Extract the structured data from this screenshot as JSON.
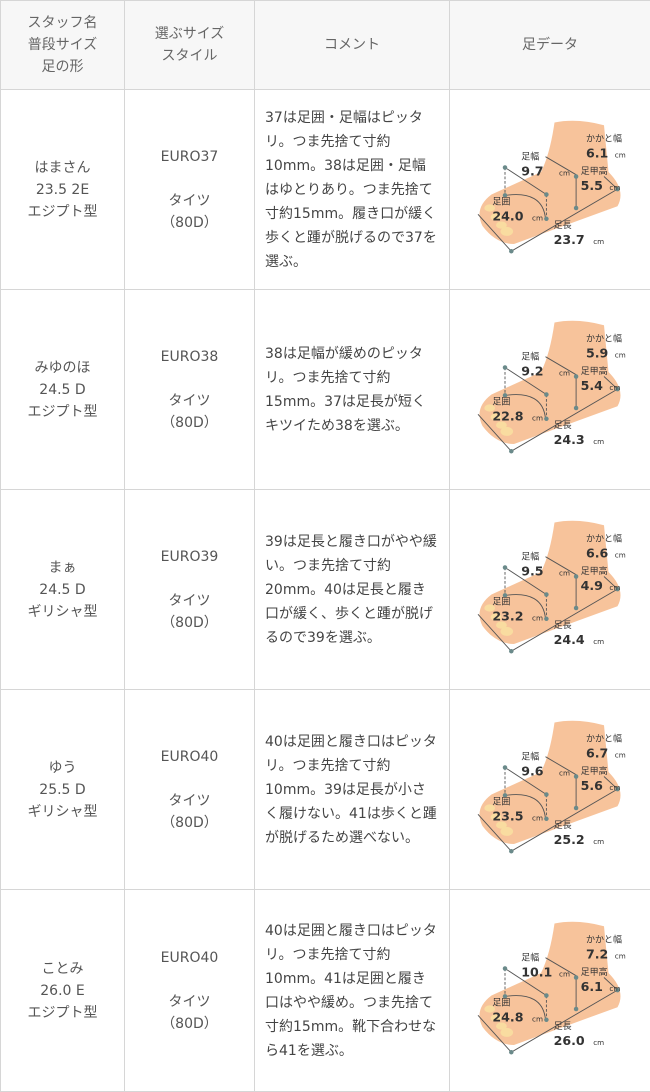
{
  "header": {
    "col1": [
      "スタッフ名",
      "普段サイズ",
      "足の形"
    ],
    "col2": [
      "選ぶサイズ",
      "スタイル"
    ],
    "col3": "コメント",
    "col4": "足データ"
  },
  "labels": {
    "width": "足幅",
    "heel": "かかと幅",
    "instep": "足甲高",
    "girth": "足囲",
    "length": "足長",
    "unit": "cm"
  },
  "rows": [
    {
      "name": "はまさん",
      "usual": "23.5 2E",
      "shape": "エジプト型",
      "size": "EURO37",
      "style": "タイツ",
      "style2": "（80D）",
      "comment": "37は足囲・足幅はピッタリ。つま先捨て寸約10mm。38は足囲・足幅はゆとりあり。つま先捨て寸約15mm。履き口が緩く歩くと踵が脱げるので37を選ぶ。",
      "foot": {
        "width": "9.7",
        "heel": "6.1",
        "instep": "5.5",
        "girth": "24.0",
        "length": "23.7"
      }
    },
    {
      "name": "みゆのほ",
      "usual": "24.5 D",
      "shape": "エジプト型",
      "size": "EURO38",
      "style": "タイツ",
      "style2": "（80D）",
      "comment": "38は足幅が緩めのピッタリ。つま先捨て寸約15mm。37は足長が短くキツイため38を選ぶ。",
      "foot": {
        "width": "9.2",
        "heel": "5.9",
        "instep": "5.4",
        "girth": "22.8",
        "length": "24.3"
      }
    },
    {
      "name": "まぁ",
      "usual": "24.5 D",
      "shape": "ギリシャ型",
      "size": "EURO39",
      "style": "タイツ",
      "style2": "（80D）",
      "comment": "39は足長と履き口がやや緩い。つま先捨て寸約20mm。40は足長と履き口が緩く、歩くと踵が脱げるので39を選ぶ。",
      "foot": {
        "width": "9.5",
        "heel": "6.6",
        "instep": "4.9",
        "girth": "23.2",
        "length": "24.4"
      }
    },
    {
      "name": "ゆう",
      "usual": "25.5 D",
      "shape": "ギリシャ型",
      "size": "EURO40",
      "style": "タイツ",
      "style2": "（80D）",
      "comment": "40は足囲と履き口はピッタリ。つま先捨て寸約10mm。39は足長が小さく履けない。41は歩くと踵が脱げるため選べない。",
      "foot": {
        "width": "9.6",
        "heel": "6.7",
        "instep": "5.6",
        "girth": "23.5",
        "length": "25.2"
      }
    },
    {
      "name": "ことみ",
      "usual": "26.0 E",
      "shape": "エジプト型",
      "size": "EURO40",
      "style": "タイツ",
      "style2": "（80D）",
      "comment": "40は足囲と履き口はピッタリ。つま先捨て寸約10mm。41は足囲と履き口はやや緩め。つま先捨て寸約15mm。靴下合わせなら41を選ぶ。",
      "foot": {
        "width": "10.1",
        "heel": "7.2",
        "instep": "6.1",
        "girth": "24.8",
        "length": "26.0"
      }
    }
  ],
  "colors": {
    "header_bg": "#f7f7f7",
    "border": "#d6d6d6",
    "skin": "#f6b88a"
  }
}
